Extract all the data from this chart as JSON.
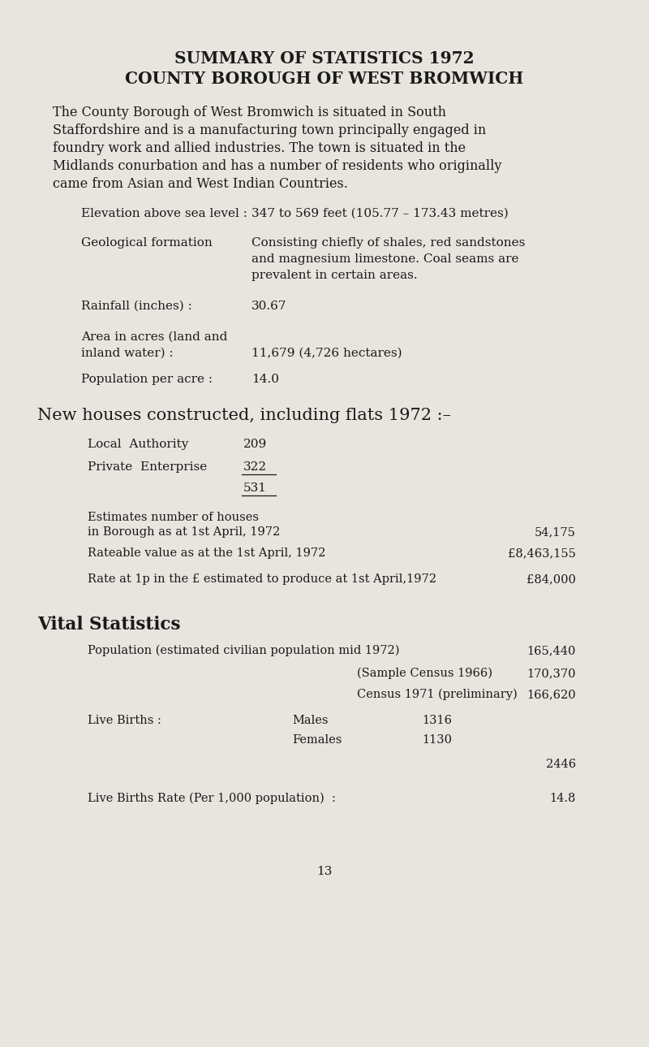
{
  "bg_color": "#e8e5df",
  "text_color": "#1a1a1a",
  "title1": "SUMMARY OF STATISTICS 1972",
  "title2": "COUNTY BOROUGH OF WEST BROMWICH",
  "intro_lines": [
    "The County Borough of West Bromwich is situated in South",
    "Staffordshire and is a manufacturing town principally engaged in",
    "foundry work and allied industries. The town is situated in the",
    "Midlands conurbation and has a number of residents who originally",
    "came from Asian and West Indian Countries."
  ],
  "elevation_label": "Elevation above sea level :",
  "elevation_value": "347 to 569 feet (105.77 – 173.43 metres)",
  "geo_label": "Geological formation",
  "geo_value_1": "Consisting chiefly of shales, red sandstones",
  "geo_value_2": "and magnesium limestone. Coal seams are",
  "geo_value_3": "prevalent in certain areas.",
  "rainfall_label": "Rainfall (inches) :",
  "rainfall_value": "30.67",
  "area_label_1": "Area in acres (land and",
  "area_label_2": "inland water) :",
  "area_value": "11,679 (4,726 hectares)",
  "pop_label": "Population per acre :",
  "pop_value": "14.0",
  "new_houses_heading": "New houses constructed, including flats 1972 :–",
  "local_auth_label": "Local  Authority",
  "local_auth_value": "209",
  "private_label": "Private  Enterprise",
  "private_value": "322",
  "total_value": "531",
  "est_label_1": "Estimates number of houses",
  "est_label_2": "in Borough as at 1st April, 1972",
  "est_value": "54,175",
  "rateable_label": "Rateable value as at the 1st April, 1972",
  "rateable_value": "£8,463,155",
  "rate_label": "Rate at 1p in the £ estimated to produce at 1st April,1972",
  "rate_value": "£84,000",
  "vital_heading": "Vital Statistics",
  "pop_est_label": "Population (estimated civilian population mid 1972)",
  "pop_est_value": "165,440",
  "sample_census_label": "(Sample Census 1966)",
  "sample_census_value": "170,370",
  "census_1971_label": "Census 1971 (preliminary)",
  "census_1971_value": "166,620",
  "live_births_label": "Live Births :",
  "males_label": "Males",
  "males_value": "1316",
  "females_label": "Females",
  "females_value": "1130",
  "total_births": "2446",
  "birth_rate_label": "Live Births Rate (Per 1,000 population)  :",
  "birth_rate_value": "14.8",
  "page_number": "13"
}
